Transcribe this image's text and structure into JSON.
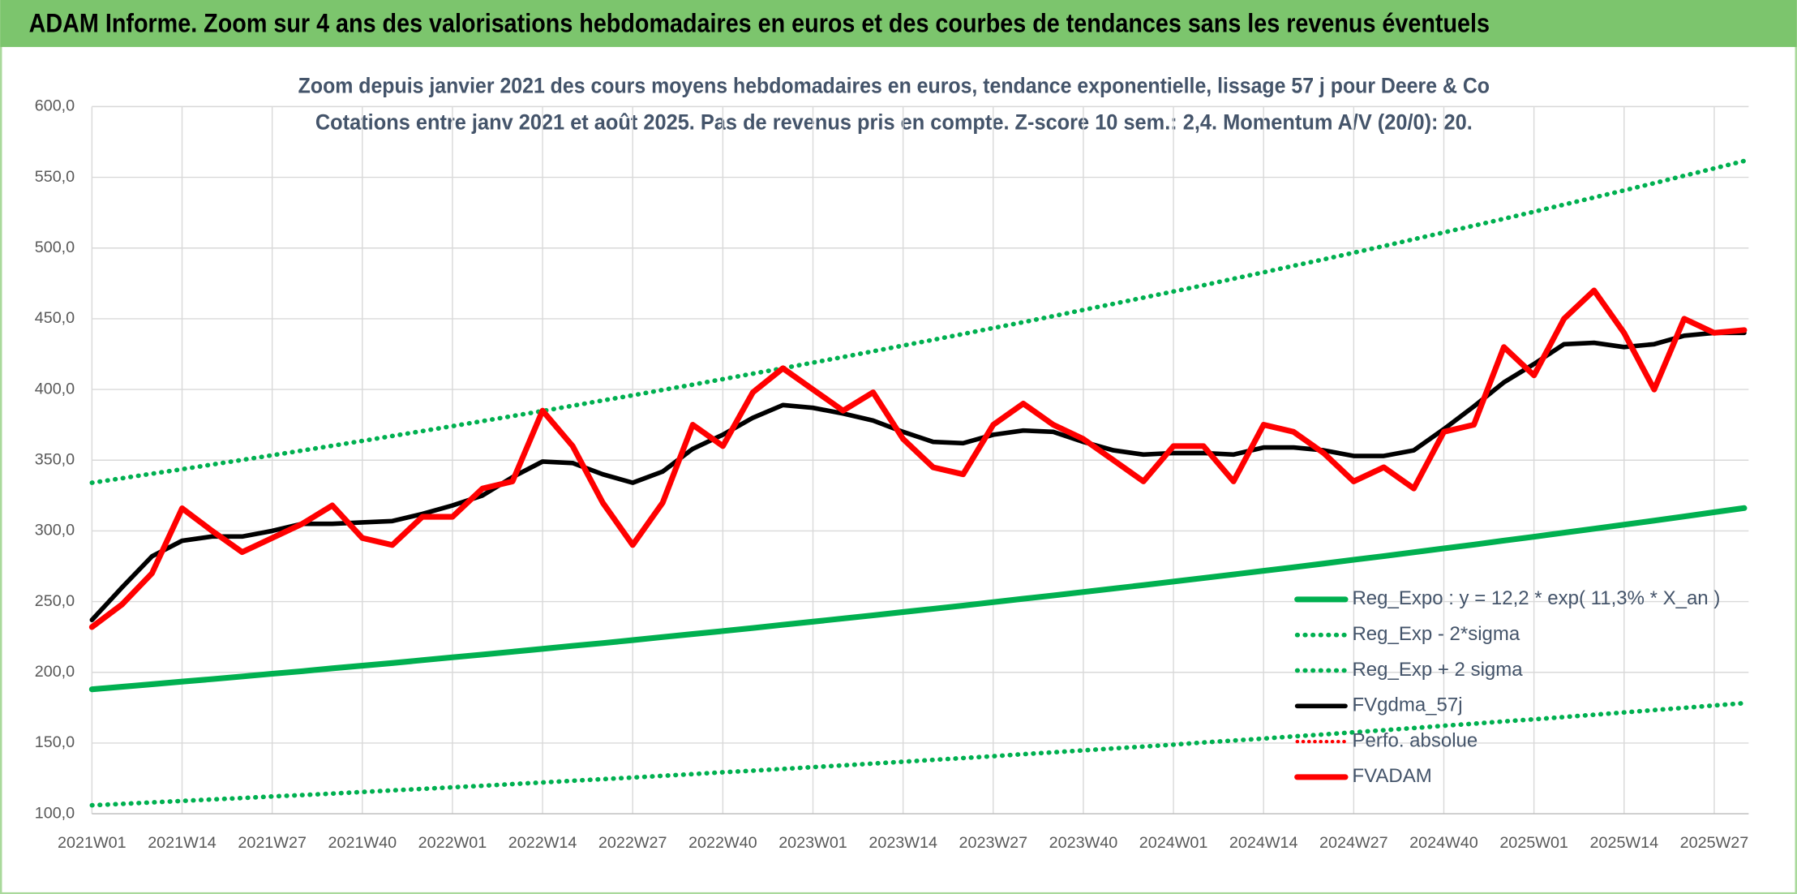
{
  "header": {
    "title": "ADAM Informe. Zoom sur 4 ans des valorisations hebdomadaires en euros et des courbes de tendances sans les revenus éventuels"
  },
  "chart_data": {
    "type": "line",
    "title": "Zoom depuis janvier 2021 des cours moyens hebdomadaires en euros, tendance exponentielle, lissage 57 j pour Deere & Co",
    "subtitle": "Cotations entre janv 2021 et août 2025. Pas de revenus pris en compte. Z-score 10 sem.: 2,4. Momentum A/V (20/0): 20.",
    "categories": [
      "2021W01",
      null,
      null,
      "2021W14",
      null,
      null,
      "2021W27",
      null,
      null,
      "2021W40",
      null,
      null,
      "2022W01",
      null,
      null,
      "2022W14",
      null,
      null,
      "2022W27",
      null,
      null,
      "2022W40",
      null,
      null,
      "2023W01",
      null,
      null,
      "2023W14",
      null,
      null,
      "2023W27",
      null,
      null,
      "2023W40",
      null,
      null,
      "2024W01",
      null,
      null,
      "2024W14",
      null,
      null,
      "2024W27",
      null,
      null,
      "2024W40",
      null,
      null,
      "2025W01",
      null,
      null,
      "2025W14",
      null,
      null,
      "2025W27",
      null
    ],
    "ylim": [
      100,
      600
    ],
    "yticks": [
      {
        "value": 100,
        "label": "100,0"
      },
      {
        "value": 150,
        "label": "150,0"
      },
      {
        "value": 200,
        "label": "200,0"
      },
      {
        "value": 250,
        "label": "250,0"
      },
      {
        "value": 300,
        "label": "300,0"
      },
      {
        "value": 350,
        "label": "350,0"
      },
      {
        "value": 400,
        "label": "400,0"
      },
      {
        "value": 450,
        "label": "450,0"
      },
      {
        "value": 500,
        "label": "500,0"
      },
      {
        "value": 550,
        "label": "550,0"
      },
      {
        "value": 600,
        "label": "600,0"
      }
    ],
    "grid": true,
    "legend": "lower right",
    "series": [
      {
        "name": "Reg_Expo : y = 12,2 * exp( 11,3% *  X_an )",
        "color": "#00b050",
        "line_style": "solid",
        "line_width": 5,
        "values": [
          188,
          189.8,
          191.6,
          193.4,
          195.2,
          197.1,
          199.0,
          200.8,
          202.8,
          204.7,
          206.6,
          208.6,
          210.6,
          212.6,
          214.6,
          216.6,
          218.7,
          220.7,
          222.8,
          225.0,
          227.1,
          229.2,
          231.4,
          233.6,
          235.8,
          238.1,
          240.3,
          242.6,
          244.9,
          247.2,
          249.6,
          252.0,
          254.4,
          256.8,
          259.2,
          261.7,
          264.2,
          266.7,
          269.2,
          271.8,
          274.3,
          276.9,
          279.6,
          282.2,
          284.9,
          287.6,
          290.3,
          293.1,
          295.9,
          298.7,
          301.5,
          304.4,
          307.3,
          310.2,
          313.2,
          316.1
        ]
      },
      {
        "name": "Reg_Exp - 2*sigma",
        "color": "#00b050",
        "line_style": "dotted",
        "line_width": 4,
        "values": [
          106,
          107.0,
          108.0,
          109.1,
          110.1,
          111.1,
          112.2,
          113.2,
          114.3,
          115.4,
          116.5,
          117.6,
          118.7,
          119.8,
          121.0,
          122.1,
          123.3,
          124.5,
          125.6,
          126.8,
          128.0,
          129.3,
          130.5,
          131.7,
          133.0,
          134.2,
          135.5,
          136.8,
          138.1,
          139.4,
          140.7,
          142.1,
          143.4,
          144.8,
          146.2,
          147.5,
          148.9,
          150.4,
          151.8,
          153.2,
          154.7,
          156.1,
          157.6,
          159.1,
          160.6,
          162.2,
          163.7,
          165.3,
          166.8,
          168.4,
          170.0,
          171.6,
          173.3,
          174.9,
          176.6,
          178.2
        ]
      },
      {
        "name": "Reg_Exp + 2 sigma",
        "color": "#00b050",
        "line_style": "dotted",
        "line_width": 4,
        "values": [
          334,
          337.2,
          340.4,
          343.6,
          346.9,
          350.2,
          353.5,
          356.8,
          360.2,
          363.6,
          367.1,
          370.6,
          374.1,
          377.6,
          381.2,
          384.8,
          388.5,
          392.2,
          395.9,
          399.7,
          403.4,
          407.3,
          411.2,
          415.0,
          419.0,
          422.9,
          427.0,
          431.0,
          435.1,
          439.2,
          443.4,
          447.6,
          451.9,
          456.2,
          460.5,
          464.9,
          469.3,
          473.7,
          478.3,
          482.8,
          487.4,
          492.0,
          496.7,
          501.4,
          506.2,
          511.0,
          515.8,
          520.7,
          525.7,
          530.7,
          535.7,
          540.8,
          545.9,
          551.1,
          556.3,
          561.6
        ]
      },
      {
        "name": "FVgdma_57j",
        "color": "#000000",
        "line_style": "solid",
        "line_width": 4,
        "values": [
          237,
          260,
          282,
          293,
          296,
          296,
          300,
          305,
          305,
          306,
          307,
          312,
          318,
          325,
          338,
          349,
          348,
          340,
          334,
          342,
          358,
          368,
          380,
          389,
          387,
          383,
          378,
          370,
          363,
          362,
          368,
          371,
          370,
          363,
          357,
          354,
          355,
          355,
          354,
          359,
          359,
          357,
          353,
          353,
          357,
          372,
          388,
          405,
          418,
          432,
          433,
          430,
          432,
          438,
          440,
          440
        ]
      },
      {
        "name": "Perfo. absolue",
        "color": "#ff0000",
        "line_style": "dotted",
        "line_width": 3,
        "values": [
          null,
          null,
          null,
          null,
          null,
          null,
          null,
          null,
          null,
          null,
          null,
          null,
          null,
          null,
          null,
          null,
          null,
          null,
          null,
          null,
          null,
          null,
          null,
          null,
          null,
          null,
          null,
          null,
          null,
          null,
          null,
          null,
          null,
          null,
          null,
          null,
          null,
          null,
          null,
          null,
          null,
          null,
          null,
          null,
          null,
          null,
          null,
          null,
          null,
          null,
          null,
          null,
          null,
          null,
          null,
          null
        ]
      },
      {
        "name": "FVADAM",
        "color": "#ff0000",
        "line_style": "solid",
        "line_width": 5,
        "values": [
          232,
          248,
          270,
          316,
          300,
          285,
          295,
          305,
          318,
          295,
          290,
          310,
          310,
          330,
          335,
          385,
          360,
          320,
          290,
          320,
          375,
          360,
          398,
          415,
          400,
          385,
          398,
          365,
          345,
          340,
          375,
          390,
          375,
          365,
          350,
          335,
          360,
          360,
          335,
          375,
          370,
          355,
          335,
          345,
          330,
          370,
          375,
          430,
          410,
          450,
          470,
          440,
          400,
          450,
          440,
          442
        ]
      }
    ]
  }
}
